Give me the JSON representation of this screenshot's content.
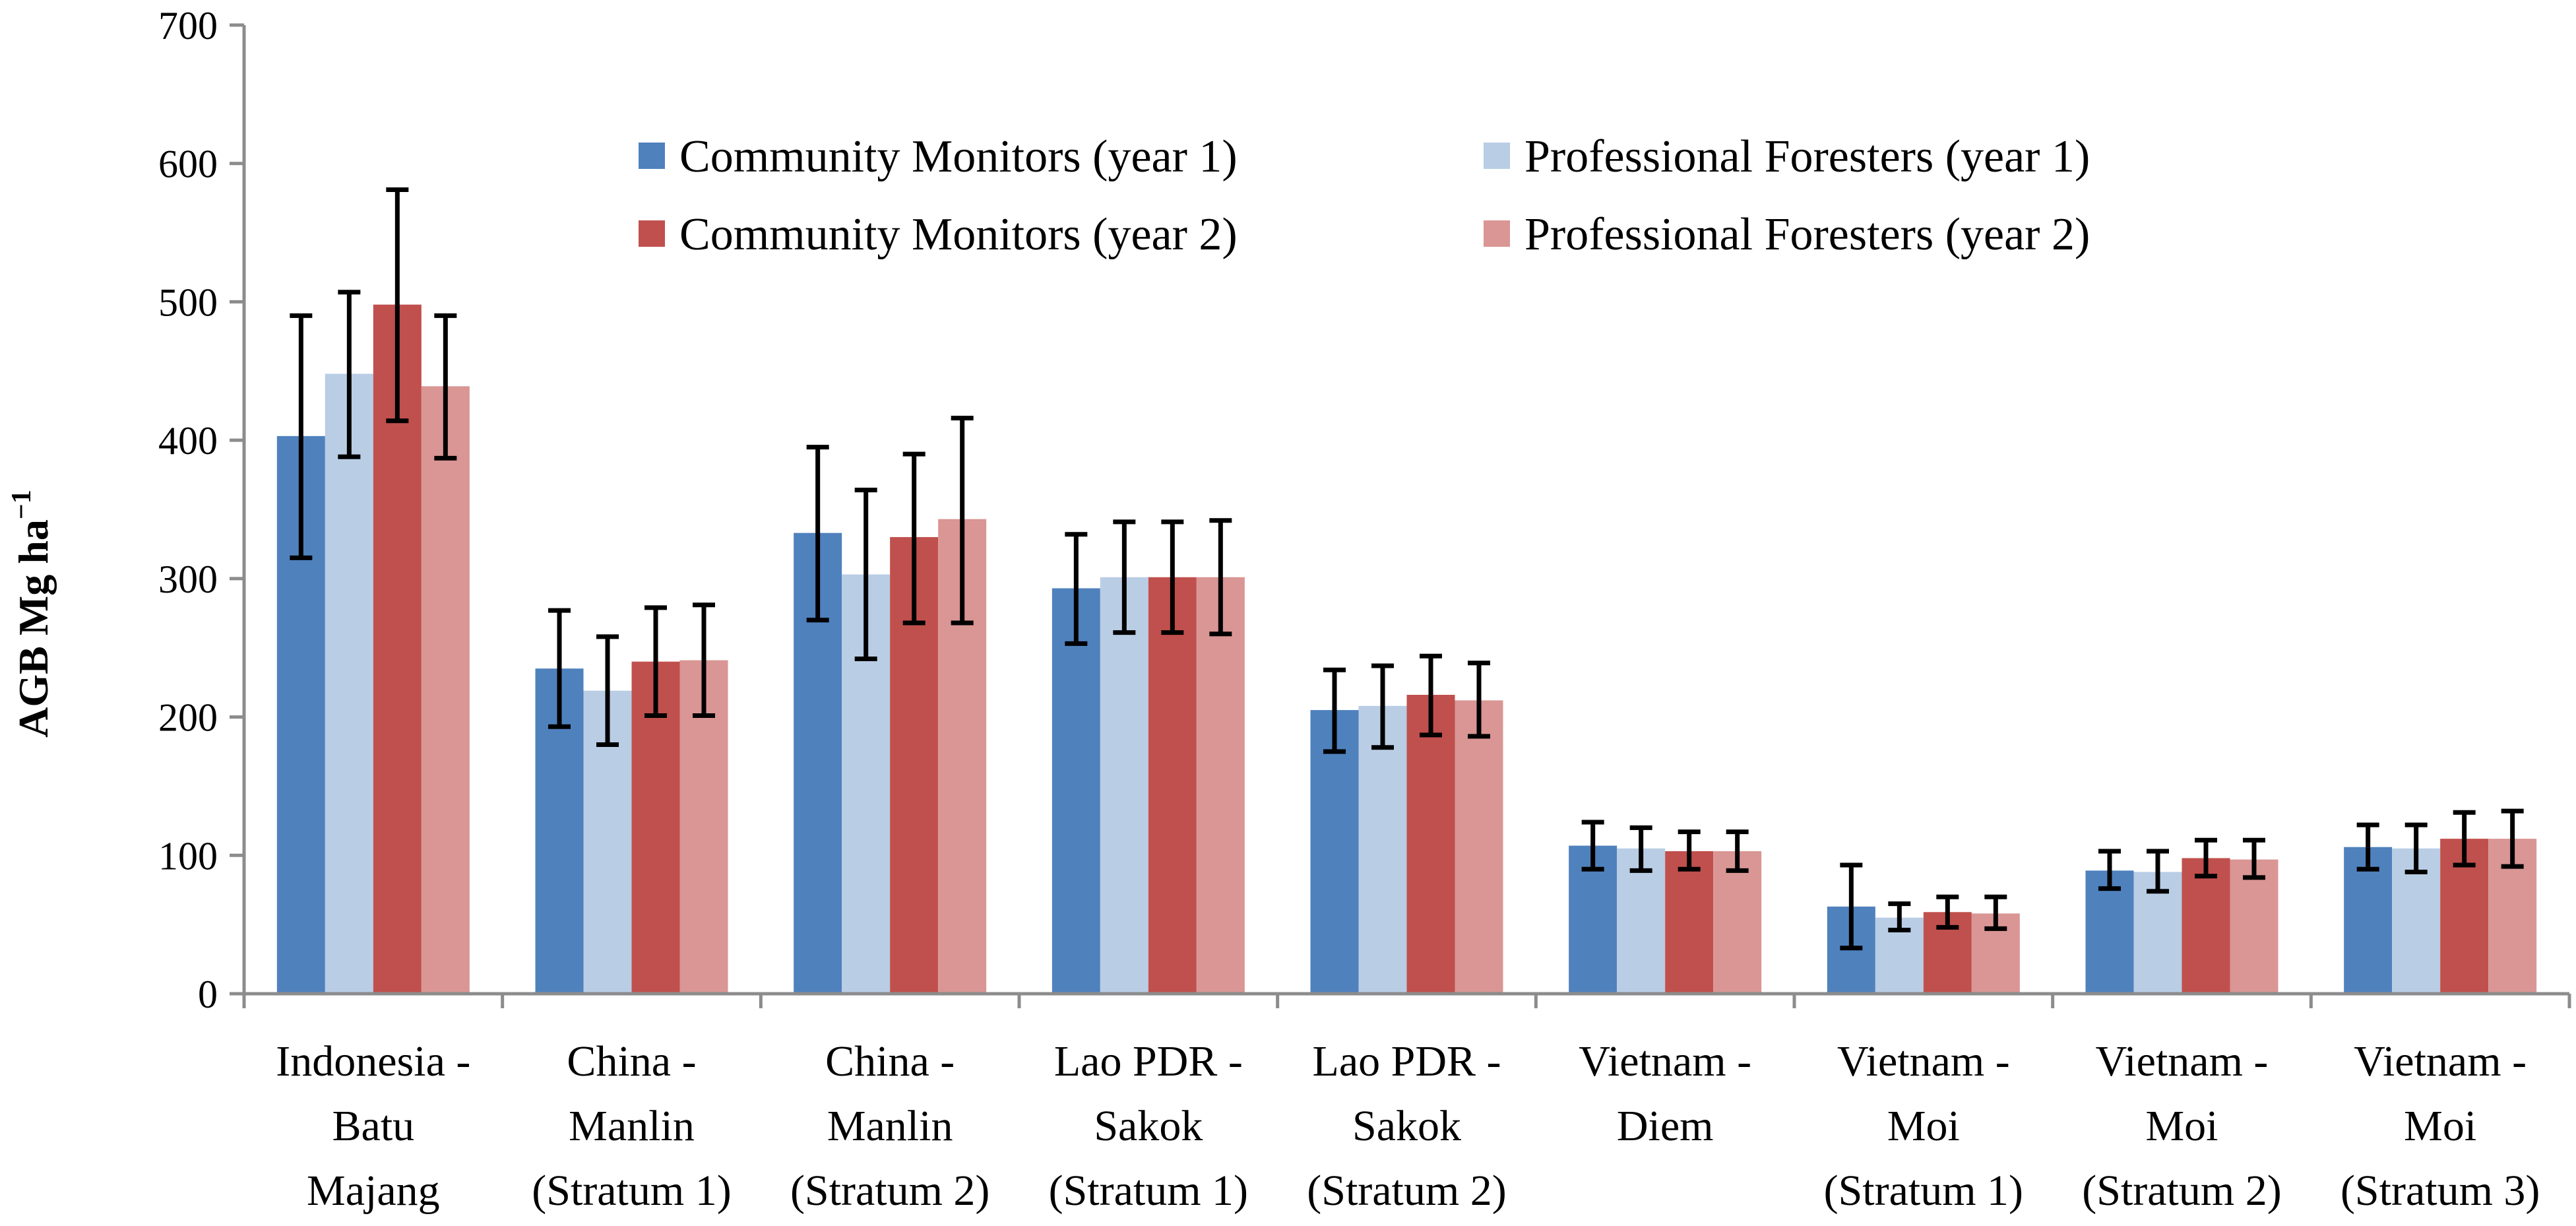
{
  "chart_data": {
    "type": "bar",
    "ylabel": "AGB Mg ha",
    "ylabel_sup": "−1",
    "ylim": [
      0,
      700
    ],
    "yticks": [
      "0",
      "100",
      "200",
      "300",
      "400",
      "500",
      "600",
      "700"
    ],
    "grid": false,
    "legend_placement": "top-center",
    "categories": [
      [
        "Indonesia -",
        "Batu",
        "Majang"
      ],
      [
        "China -",
        "Manlin",
        "(Stratum 1)"
      ],
      [
        "China -",
        "Manlin",
        "(Stratum 2)"
      ],
      [
        "Lao PDR -",
        "Sakok",
        "(Stratum 1)"
      ],
      [
        "Lao PDR -",
        "Sakok",
        "(Stratum 2)"
      ],
      [
        "Vietnam -",
        "Diem"
      ],
      [
        "Vietnam -",
        "Moi",
        "(Stratum 1)"
      ],
      [
        "Vietnam -",
        "Moi",
        "(Stratum 2)"
      ],
      [
        "Vietnam -",
        "Moi",
        "(Stratum 3)"
      ]
    ],
    "series": [
      {
        "name": "Community Monitors (year 1)",
        "color": "#4f81bd",
        "values": [
          403,
          235,
          333,
          293,
          205,
          107,
          63,
          89,
          106
        ],
        "error_low": [
          315,
          193,
          270,
          253,
          175,
          90,
          33,
          76,
          90
        ],
        "error_high": [
          490,
          277,
          395,
          332,
          234,
          124,
          93,
          103,
          122
        ]
      },
      {
        "name": "Professional Foresters (year 1)",
        "color": "#b9cde5",
        "values": [
          448,
          219,
          303,
          301,
          208,
          105,
          55,
          88,
          105
        ],
        "error_low": [
          388,
          180,
          242,
          261,
          178,
          89,
          46,
          74,
          88
        ],
        "error_high": [
          507,
          258,
          364,
          341,
          237,
          120,
          65,
          103,
          122
        ]
      },
      {
        "name": "Community Monitors (year 2)",
        "color": "#c0504d",
        "values": [
          498,
          240,
          330,
          301,
          216,
          103,
          59,
          98,
          112
        ],
        "error_low": [
          414,
          201,
          268,
          261,
          187,
          90,
          48,
          85,
          93
        ],
        "error_high": [
          581,
          279,
          390,
          341,
          244,
          117,
          70,
          111,
          131
        ]
      },
      {
        "name": "Professional Foresters (year 2)",
        "color": "#d99694",
        "values": [
          439,
          241,
          343,
          301,
          212,
          103,
          58,
          97,
          112
        ],
        "error_low": [
          387,
          201,
          268,
          260,
          186,
          89,
          47,
          84,
          92
        ],
        "error_high": [
          490,
          281,
          416,
          342,
          239,
          117,
          70,
          111,
          132
        ]
      }
    ]
  }
}
